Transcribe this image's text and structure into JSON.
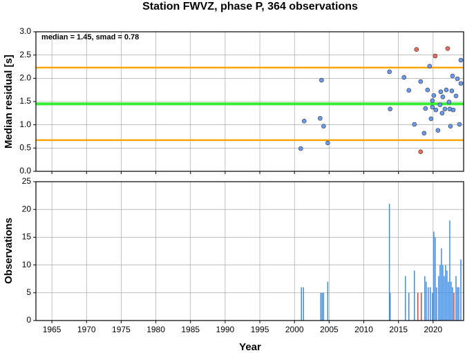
{
  "chart_data": [
    {
      "type": "scatter",
      "title": "Station FWVZ, phase P, 364 observations",
      "annotation": "median = 1.45, smad = 0.78",
      "ylabel": "Median residual [s]",
      "xlim": [
        1962.7,
        2024.4
      ],
      "xticks": [
        1965,
        1970,
        1975,
        1980,
        1985,
        1990,
        1995,
        2000,
        2005,
        2010,
        2015,
        2020
      ],
      "ylim": [
        0,
        3
      ],
      "yticks": [
        {
          "value": 0,
          "label": "0.0"
        },
        0.5,
        {
          "value": 1,
          "label": "1.0"
        },
        1.5,
        {
          "value": 2,
          "label": "2.0"
        },
        2.5,
        {
          "value": 3,
          "label": "3.0"
        }
      ],
      "grid": true,
      "hlines": [
        {
          "value": 2.23,
          "color": "#ffa500"
        },
        {
          "value": 1.45,
          "color": "#33ee33"
        },
        {
          "value": 0.67,
          "color": "#ffa500"
        }
      ],
      "series": [
        {
          "color": "#6a9af0",
          "x": [
            2000.9,
            2001.4,
            2003.9,
            2003.7,
            2004.2,
            2004.8,
            2013.7,
            2013.8,
            2015.8,
            2016.5,
            2017.3,
            2018.2,
            2018.7,
            2018.9,
            2019.2,
            2019.5,
            2019.7,
            2019.9,
            2019.9,
            2020.1,
            2020.4,
            2020.7,
            2021.0,
            2021.1,
            2021.3,
            2021.4,
            2021.7,
            2021.9,
            2022.3,
            2022.4,
            2022.5,
            2022.7,
            2022.8,
            2022.9,
            2023.3,
            2023.5,
            2023.8,
            2024.0,
            2024.0
          ],
          "values": [
            0.49,
            1.08,
            1.96,
            1.14,
            0.97,
            0.61,
            2.14,
            1.34,
            2.02,
            1.74,
            1.01,
            1.93,
            0.82,
            1.35,
            1.75,
            2.26,
            1.13,
            1.52,
            1.38,
            1.63,
            1.32,
            0.88,
            1.43,
            1.71,
            1.25,
            1.6,
            1.34,
            1.75,
            1.49,
            1.34,
            0.97,
            1.73,
            2.05,
            1.32,
            1.62,
            1.99,
            1.01,
            2.39,
            1.89
          ]
        },
        {
          "color": "#f06a5a",
          "x": [
            2017.6,
            2018.2,
            2020.3,
            2022.1
          ],
          "values": [
            2.62,
            0.42,
            2.48,
            2.64
          ]
        }
      ]
    },
    {
      "type": "bar",
      "xlabel": "Year",
      "ylabel": "Observations",
      "xlim": [
        1962.7,
        2024.4
      ],
      "xticks": [
        1965,
        1970,
        1975,
        1980,
        1985,
        1990,
        1995,
        2000,
        2005,
        2010,
        2015,
        2020
      ],
      "ylim": [
        0,
        25
      ],
      "yticks": [
        0,
        5,
        10,
        15,
        20,
        25
      ],
      "grid": true,
      "series": [
        {
          "color": "#3c8ce6",
          "x": [
            2001.0,
            2001.3,
            2003.8,
            2004.0,
            2004.2,
            2004.8,
            2013.7,
            2013.8,
            2016.0,
            2016.5,
            2017.3,
            2018.8,
            2019.0,
            2019.3,
            2019.6,
            2019.9,
            2020.1,
            2020.3,
            2020.5,
            2020.8,
            2021.0,
            2021.2,
            2021.4,
            2021.6,
            2021.8,
            2022.0,
            2022.2,
            2022.4,
            2022.6,
            2022.8,
            2023.3,
            2023.5,
            2023.7,
            2024.0
          ],
          "values": [
            6,
            6,
            5,
            5,
            5,
            7,
            21,
            5,
            8,
            5,
            9,
            8,
            7,
            6,
            6,
            5,
            16,
            15,
            6,
            8,
            10,
            13,
            10,
            8,
            10,
            9,
            7,
            18,
            7,
            6,
            8,
            6,
            6,
            11
          ]
        },
        {
          "color": "#e03c3c",
          "x": [
            2017.8,
            2018.3,
            2023.0
          ],
          "values": [
            5,
            5,
            5
          ]
        }
      ]
    }
  ]
}
